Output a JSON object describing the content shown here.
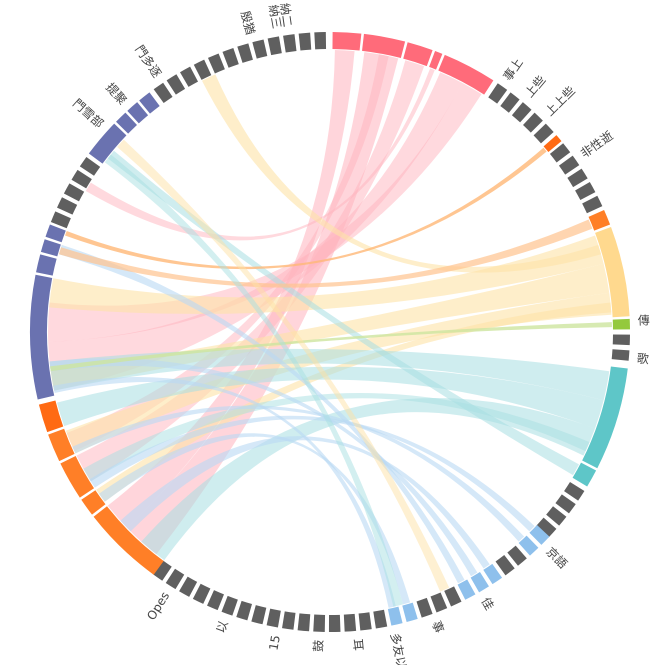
{
  "chart_data": {
    "type": "chord",
    "colors": {
      "gray": "#5f5f5f",
      "red": "#ff6b7a",
      "navy": "#6a72b0",
      "orange": "#ff7f27",
      "deep_orange": "#ff6a13",
      "yellow": "#ffd98e",
      "teal": "#5ec6c8",
      "green": "#94c93d",
      "blue": "#8ec0ec"
    },
    "labels": [
      {
        "id": "lbl-1",
        "text": "殷猶"
      },
      {
        "id": "lbl-2",
        "text": "納三"
      },
      {
        "id": "lbl-3",
        "text": "納二"
      },
      {
        "id": "lbl-4",
        "text": "門多逐"
      },
      {
        "id": "lbl-5",
        "text": "提聚"
      },
      {
        "id": "lbl-6",
        "text": "門雪部"
      },
      {
        "id": "lbl-7",
        "text": "事上"
      },
      {
        "id": "lbl-8",
        "text": "上些"
      },
      {
        "id": "lbl-9",
        "text": "上上些"
      },
      {
        "id": "lbl-10",
        "text": "非性逝"
      },
      {
        "id": "lbl-11",
        "text": "傳"
      },
      {
        "id": "lbl-12",
        "text": "歌"
      },
      {
        "id": "lbl-13",
        "text": "京語"
      },
      {
        "id": "lbl-14",
        "text": "佳"
      },
      {
        "id": "lbl-15",
        "text": "事"
      },
      {
        "id": "lbl-16",
        "text": "耳"
      },
      {
        "id": "lbl-17",
        "text": "鼓"
      },
      {
        "id": "lbl-18",
        "text": "Opes"
      },
      {
        "id": "lbl-19",
        "text": "以"
      },
      {
        "id": "lbl-20",
        "text": "15"
      },
      {
        "id": "lbl-21",
        "text": "多友以"
      }
    ]
  }
}
